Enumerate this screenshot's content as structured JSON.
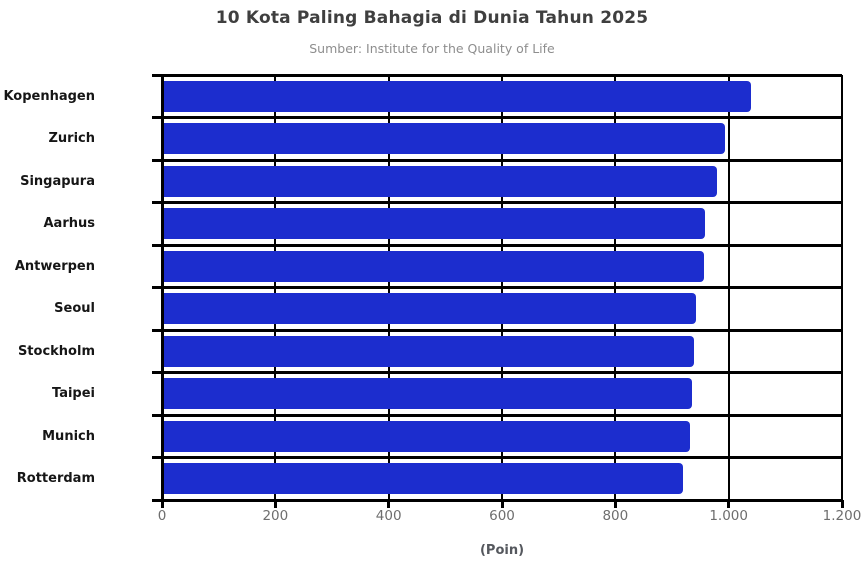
{
  "header": {
    "title": "10 Kota Paling Bahagia di Dunia Tahun 2025",
    "subtitle": "Sumber: Institute for the Quality of Life"
  },
  "chart_data": {
    "type": "bar",
    "orientation": "horizontal",
    "title": "10 Kota Paling Bahagia di Dunia Tahun 2025",
    "subtitle": "Sumber: Institute for the Quality of Life",
    "categories": [
      "Kopenhagen",
      "Zurich",
      "Singapura",
      "Aarhus",
      "Antwerpen",
      "Seoul",
      "Stockholm",
      "Taipei",
      "Munich",
      "Rotterdam"
    ],
    "values": [
      1039,
      993,
      979,
      958,
      956,
      942,
      939,
      936,
      931,
      920
    ],
    "xlabel": "(Poin)",
    "ylabel": "",
    "xlim": [
      0,
      1200
    ],
    "xticks": [
      0,
      200,
      400,
      600,
      800,
      1000,
      1200
    ],
    "xtick_labels": [
      "0",
      "200",
      "400",
      "600",
      "800",
      "1.000",
      "1.200"
    ],
    "grid": true,
    "legend": false,
    "colors": {
      "bar": "#1C2DCE",
      "grid": "#000000",
      "title": "#3F3F3F",
      "subtitle": "#8E8E8E",
      "tick_label": "#6E6E6E",
      "axis_label": "#55585E",
      "category_label": "#161616",
      "background": "#FFFFFF"
    }
  }
}
